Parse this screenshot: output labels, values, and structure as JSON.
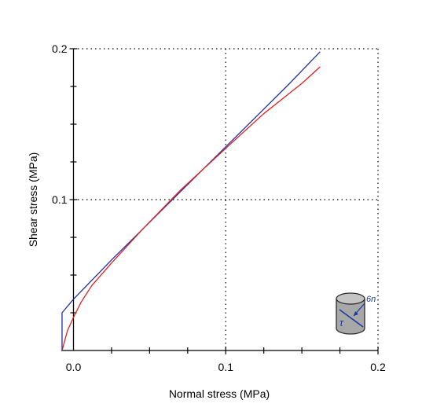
{
  "chart_data": {
    "type": "line",
    "title": "",
    "xlabel": "Normal stress (MPa)",
    "ylabel": "Shear stress (MPa)",
    "xlim": [
      -0.008,
      0.2
    ],
    "ylim": [
      0,
      0.2
    ],
    "x_ticks": [
      0.0,
      0.1,
      0.2
    ],
    "x_tick_labels": [
      "0.0",
      "0.1",
      "0.2"
    ],
    "y_ticks": [
      0.1,
      0.2
    ],
    "y_tick_labels": [
      "0.1",
      "0.2"
    ],
    "grid": "dotted at 0.1 and 0.2",
    "series": [
      {
        "color": "#1f2fa8",
        "x": [
          -0.0075,
          -0.0075,
          0.0,
          0.025,
          0.06,
          0.1,
          0.14,
          0.162
        ],
        "y": [
          0.0,
          0.025,
          0.034,
          0.06,
          0.095,
          0.135,
          0.175,
          0.198
        ]
      },
      {
        "color": "#e02020",
        "x": [
          -0.0075,
          -0.004,
          0.0,
          0.005,
          0.012,
          0.025,
          0.045,
          0.07,
          0.1,
          0.125,
          0.15,
          0.162
        ],
        "y": [
          0.0,
          0.013,
          0.022,
          0.032,
          0.043,
          0.058,
          0.08,
          0.106,
          0.134,
          0.157,
          0.177,
          0.188
        ]
      }
    ]
  },
  "icon": {
    "name": "cylinder-shear-icon",
    "sigma_label": "6n",
    "tau_label": "τ",
    "fill": "#a8a8a8",
    "stroke": "#2a2a2a",
    "arrow_color": "#1a3c9e"
  }
}
